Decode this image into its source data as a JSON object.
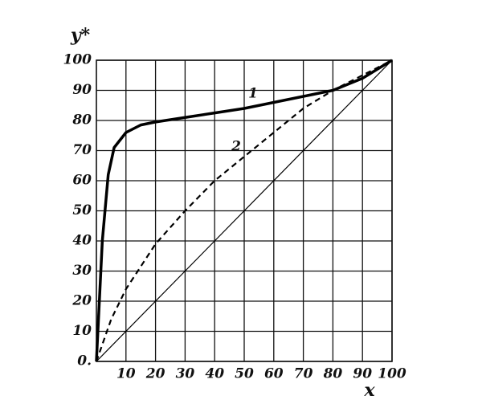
{
  "chart_data": {
    "type": "line",
    "xlabel": "x",
    "ylabel": "y*",
    "xlim": [
      0,
      100
    ],
    "ylim": [
      0,
      100
    ],
    "xticks": [
      10,
      20,
      30,
      40,
      50,
      60,
      70,
      80,
      90,
      100
    ],
    "yticks": [
      {
        "value": 0,
        "label": "0."
      },
      10,
      20,
      30,
      40,
      50,
      60,
      70,
      80,
      90,
      100
    ],
    "grid": true,
    "series": [
      {
        "name": "1",
        "color": "#000000",
        "style": "solid",
        "width": 3.5,
        "x": [
          0,
          2,
          4,
          6,
          10,
          15,
          20,
          30,
          40,
          50,
          60,
          70,
          80,
          90,
          100
        ],
        "values": [
          0,
          40,
          62,
          71,
          76,
          78.5,
          79.5,
          81,
          82.5,
          84,
          86,
          88,
          90,
          94,
          100
        ]
      },
      {
        "name": "2",
        "color": "#000000",
        "style": "dashed",
        "width": 2.2,
        "x": [
          0,
          5,
          10,
          20,
          30,
          40,
          50,
          60,
          70,
          80,
          90,
          100
        ],
        "values": [
          0,
          14,
          24,
          39,
          50,
          60,
          68,
          76,
          84,
          90,
          95,
          100
        ]
      },
      {
        "color": "#000000",
        "style": "solid",
        "width": 1.2,
        "x": [
          0,
          100
        ],
        "values": [
          0,
          100
        ]
      }
    ]
  }
}
